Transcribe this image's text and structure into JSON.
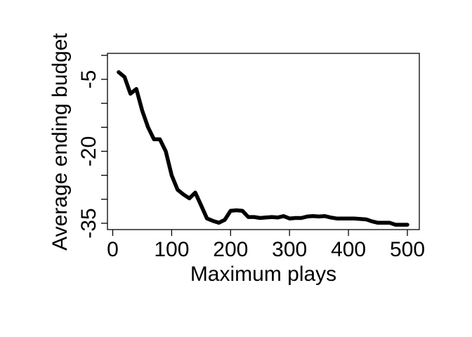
{
  "chart_data": {
    "type": "line",
    "xlabel": "Maximum plays",
    "ylabel": "Average ending budget",
    "xlim": [
      0,
      520
    ],
    "ylim": [
      -35.5,
      0
    ],
    "x_ticks": [
      0,
      100,
      200,
      300,
      400,
      500
    ],
    "x_tick_labels": [
      "0",
      "100",
      "200",
      "300",
      "400",
      "500"
    ],
    "y_ticks": [
      -35,
      -30,
      -25,
      -20,
      -15,
      -10,
      -5,
      0
    ],
    "y_tick_labels": [
      "-35",
      "",
      "",
      "-20",
      "",
      "",
      "-5",
      ""
    ],
    "grid": false,
    "series": [
      {
        "color": "#000000",
        "x": [
          10,
          20,
          30,
          40,
          50,
          60,
          70,
          80,
          90,
          100,
          110,
          120,
          130,
          140,
          150,
          160,
          170,
          180,
          190,
          200,
          210,
          220,
          230,
          240,
          250,
          260,
          270,
          280,
          290,
          300,
          310,
          320,
          330,
          340,
          350,
          360,
          370,
          380,
          390,
          400,
          410,
          420,
          430,
          440,
          450,
          460,
          470,
          480,
          490,
          500
        ],
        "y": [
          -3.5,
          -4.5,
          -8,
          -7,
          -11.5,
          -15,
          -17.5,
          -17.5,
          -20,
          -25,
          -28,
          -29,
          -29.8,
          -28.6,
          -31.3,
          -34,
          -34.5,
          -34.9,
          -34.3,
          -32.4,
          -32.3,
          -32.4,
          -33.7,
          -33.7,
          -33.9,
          -33.8,
          -33.7,
          -33.8,
          -33.5,
          -34,
          -33.9,
          -33.9,
          -33.6,
          -33.5,
          -33.6,
          -33.5,
          -33.8,
          -34,
          -34,
          -34,
          -34,
          -34.1,
          -34.2,
          -34.6,
          -34.9,
          -34.9,
          -34.9,
          -35.3,
          -35.3,
          -35.3
        ]
      }
    ]
  }
}
